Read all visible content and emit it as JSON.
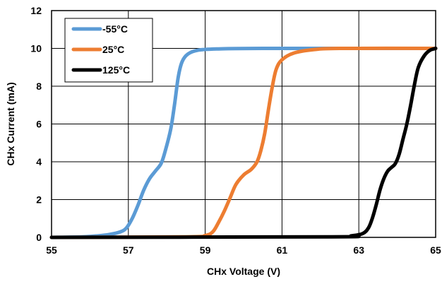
{
  "chart_data": {
    "type": "line",
    "xlabel": "CHx Voltage (V)",
    "ylabel": "CHx Current (mA)",
    "xlim": [
      55,
      65
    ],
    "ylim": [
      0,
      12
    ],
    "x_ticks": [
      "55",
      "57",
      "59",
      "61",
      "63",
      "65"
    ],
    "y_ticks": [
      "0",
      "2",
      "4",
      "6",
      "8",
      "10",
      "12"
    ],
    "grid": true,
    "legend_position": "top-left",
    "series": [
      {
        "name": "-55°C",
        "color": "#5b9bd5",
        "points": [
          [
            55.0,
            0.0
          ],
          [
            55.8,
            0.03
          ],
          [
            56.2,
            0.08
          ],
          [
            56.5,
            0.15
          ],
          [
            56.8,
            0.3
          ],
          [
            56.95,
            0.5
          ],
          [
            57.1,
            1.0
          ],
          [
            57.25,
            1.7
          ],
          [
            57.4,
            2.5
          ],
          [
            57.55,
            3.1
          ],
          [
            57.7,
            3.5
          ],
          [
            57.85,
            3.9
          ],
          [
            57.95,
            4.5
          ],
          [
            58.1,
            5.7
          ],
          [
            58.2,
            7.0
          ],
          [
            58.3,
            8.5
          ],
          [
            58.4,
            9.3
          ],
          [
            58.55,
            9.7
          ],
          [
            58.8,
            9.9
          ],
          [
            59.3,
            9.97
          ],
          [
            60.5,
            10.0
          ],
          [
            65.0,
            10.0
          ]
        ]
      },
      {
        "name": "25°C",
        "color": "#ed7d31",
        "points": [
          [
            55.0,
            0.0
          ],
          [
            58.5,
            0.03
          ],
          [
            59.0,
            0.1
          ],
          [
            59.2,
            0.3
          ],
          [
            59.35,
            0.8
          ],
          [
            59.5,
            1.4
          ],
          [
            59.65,
            2.1
          ],
          [
            59.8,
            2.8
          ],
          [
            60.0,
            3.3
          ],
          [
            60.2,
            3.6
          ],
          [
            60.35,
            4.0
          ],
          [
            60.45,
            4.6
          ],
          [
            60.55,
            5.5
          ],
          [
            60.65,
            6.8
          ],
          [
            60.75,
            8.0
          ],
          [
            60.85,
            8.9
          ],
          [
            61.0,
            9.4
          ],
          [
            61.3,
            9.75
          ],
          [
            61.8,
            9.93
          ],
          [
            62.5,
            10.0
          ],
          [
            65.0,
            10.0
          ]
        ]
      },
      {
        "name": "125°C",
        "color": "#000000",
        "points": [
          [
            55.0,
            0.0
          ],
          [
            62.3,
            0.03
          ],
          [
            62.8,
            0.08
          ],
          [
            63.1,
            0.2
          ],
          [
            63.25,
            0.5
          ],
          [
            63.35,
            1.0
          ],
          [
            63.45,
            1.7
          ],
          [
            63.55,
            2.5
          ],
          [
            63.65,
            3.1
          ],
          [
            63.75,
            3.5
          ],
          [
            63.85,
            3.7
          ],
          [
            63.95,
            3.9
          ],
          [
            64.05,
            4.4
          ],
          [
            64.15,
            5.2
          ],
          [
            64.25,
            6.0
          ],
          [
            64.35,
            7.0
          ],
          [
            64.45,
            8.1
          ],
          [
            64.55,
            9.0
          ],
          [
            64.7,
            9.6
          ],
          [
            64.85,
            9.9
          ],
          [
            65.0,
            10.0
          ]
        ]
      }
    ]
  }
}
